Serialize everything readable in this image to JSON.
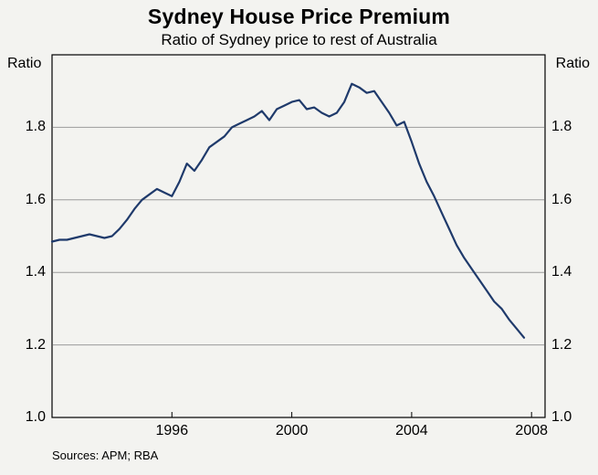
{
  "chart_data": {
    "type": "line",
    "title": "Sydney House Price Premium",
    "subtitle": "Ratio of Sydney price to rest of Australia",
    "ylabel_left": "Ratio",
    "ylabel_right": "Ratio",
    "sources": "Sources: APM; RBA",
    "xlim": [
      1992.0,
      2008.45
    ],
    "ylim": [
      1.0,
      2.0
    ],
    "yticks": [
      1.0,
      1.2,
      1.4,
      1.6,
      1.8
    ],
    "ytick_labels": [
      "1.0",
      "1.2",
      "1.4",
      "1.6",
      "1.8"
    ],
    "xticks": [
      1996,
      2000,
      2004,
      2008
    ],
    "xtick_labels": [
      "1996",
      "2000",
      "2004",
      "2008"
    ],
    "grid": "horizontal",
    "legend": "none",
    "x_start": 1992.0,
    "x_step_years": 0.25,
    "x_unit": "year (quarterly observations)",
    "series": [
      {
        "name": "Ratio of Sydney house price to rest of Australia",
        "values": [
          1.485,
          1.49,
          1.49,
          1.495,
          1.5,
          1.505,
          1.5,
          1.495,
          1.5,
          1.52,
          1.545,
          1.575,
          1.6,
          1.615,
          1.63,
          1.62,
          1.61,
          1.65,
          1.7,
          1.68,
          1.71,
          1.745,
          1.76,
          1.775,
          1.8,
          1.81,
          1.82,
          1.83,
          1.845,
          1.82,
          1.85,
          1.86,
          1.87,
          1.875,
          1.85,
          1.855,
          1.84,
          1.83,
          1.84,
          1.87,
          1.92,
          1.91,
          1.895,
          1.9,
          1.87,
          1.84,
          1.805,
          1.815,
          1.76,
          1.7,
          1.65,
          1.61,
          1.565,
          1.52,
          1.475,
          1.44,
          1.41,
          1.38,
          1.35,
          1.32,
          1.3,
          1.27,
          1.245,
          1.22
        ]
      }
    ],
    "colors": {
      "line": "#1f3a6b",
      "grid": "#9b9b9b",
      "frame": "#000000",
      "background": "#f3f3f0"
    }
  }
}
